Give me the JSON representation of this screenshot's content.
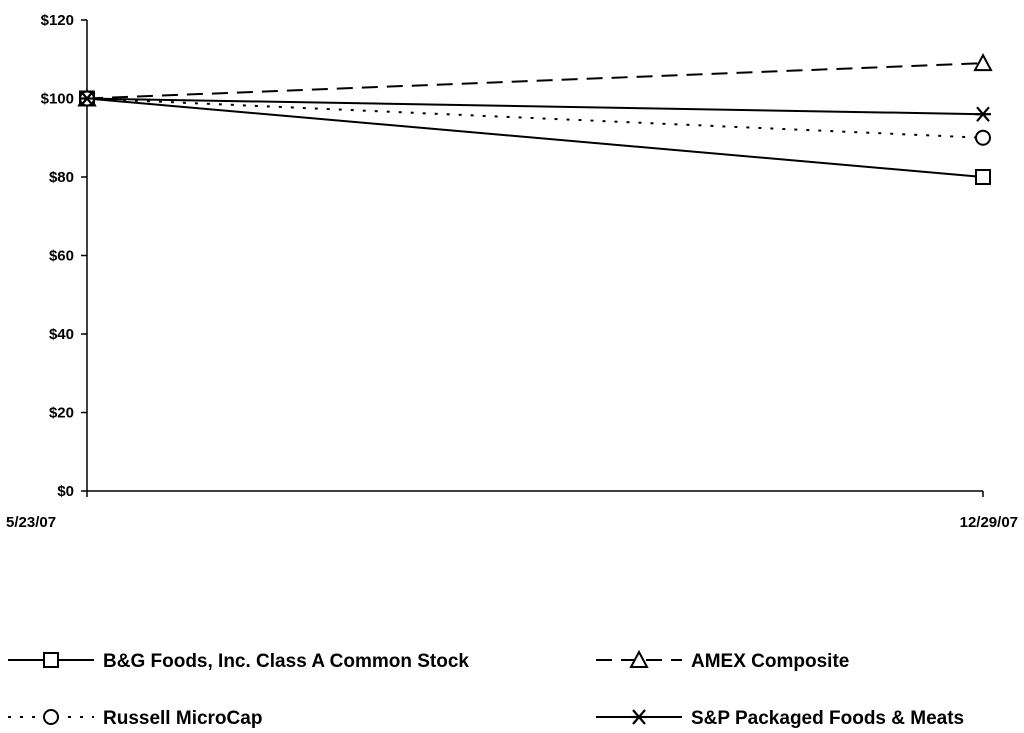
{
  "chart_data": {
    "type": "line",
    "title": "",
    "xlabel": "",
    "ylabel": "",
    "x": [
      "5/23/07",
      "12/29/07"
    ],
    "y_ticks": [
      "$0",
      "$20",
      "$40",
      "$60",
      "$80",
      "$100",
      "$120"
    ],
    "ylim": [
      0,
      120
    ],
    "grid": false,
    "legend_position": "bottom",
    "series": [
      {
        "name": "B&G Foods, Inc. Class A Common Stock",
        "values": [
          100,
          80
        ],
        "line_style": "solid",
        "marker": "square"
      },
      {
        "name": "AMEX Composite",
        "values": [
          100,
          109
        ],
        "line_style": "dashed",
        "marker": "triangle"
      },
      {
        "name": "Russell MicroCap",
        "values": [
          100,
          90
        ],
        "line_style": "dotted",
        "marker": "circle"
      },
      {
        "name": "S&P Packaged Foods & Meats",
        "values": [
          100,
          96
        ],
        "line_style": "solid",
        "marker": "asterisk"
      }
    ]
  }
}
